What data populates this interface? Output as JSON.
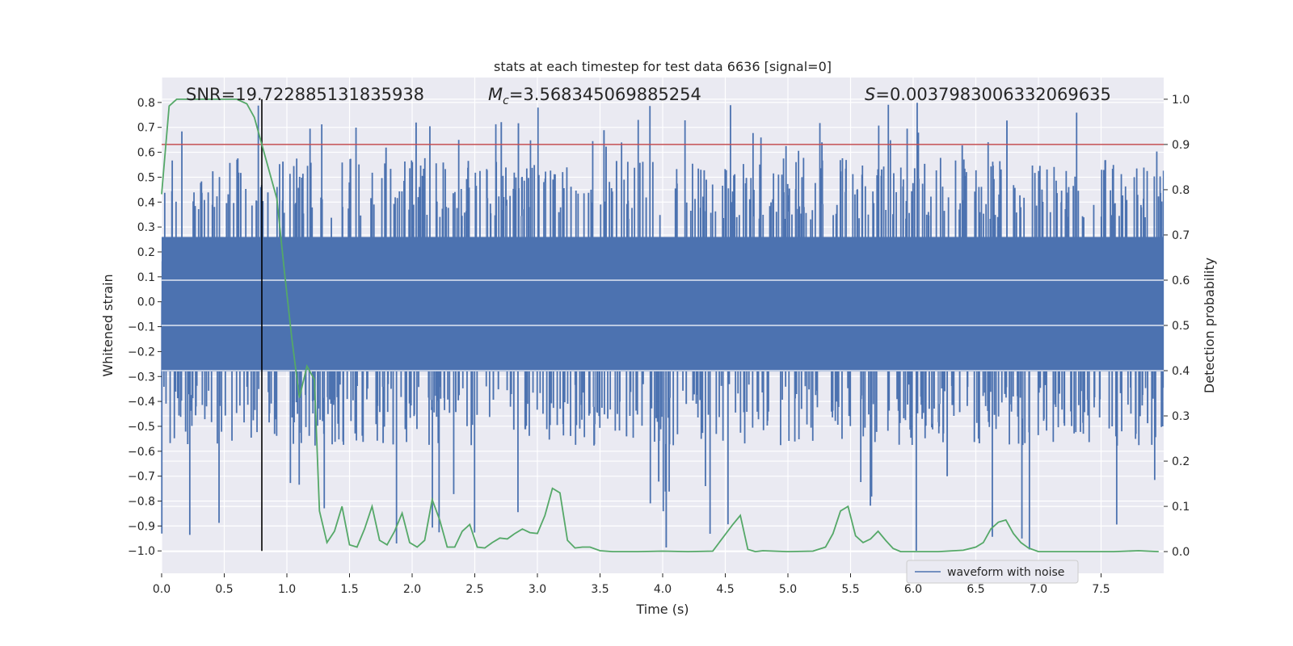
{
  "chart_data": {
    "type": "line",
    "title": "stats at each timestep for test data 6636 [signal=0]",
    "xlabel": "Time (s)",
    "ylabel": "Whitened strain",
    "ylabel_right": "Detection probability",
    "xlim": [
      0.0,
      8.0
    ],
    "ylim": [
      -1.09,
      0.9
    ],
    "ylim_right": [
      -0.048,
      1.048
    ],
    "xticks": [
      0.0,
      0.5,
      1.0,
      1.5,
      2.0,
      2.5,
      3.0,
      3.5,
      4.0,
      4.5,
      5.0,
      5.5,
      6.0,
      6.5,
      7.0,
      7.5
    ],
    "xtick_labels": [
      "0.0",
      "0.5",
      "1.0",
      "1.5",
      "2.0",
      "2.5",
      "3.0",
      "3.5",
      "4.0",
      "4.5",
      "5.0",
      "5.5",
      "6.0",
      "6.5",
      "7.0",
      "7.5"
    ],
    "yticks": [
      0.8,
      0.7,
      0.6,
      0.5,
      0.4,
      0.3,
      0.2,
      0.1,
      0.0,
      -0.1,
      -0.2,
      -0.3,
      -0.4,
      -0.5,
      -0.6,
      -0.7,
      -0.8,
      -0.9,
      -1.0
    ],
    "ytick_labels": [
      "0.8",
      "0.7",
      "0.6",
      "0.5",
      "0.4",
      "0.3",
      "0.2",
      "0.1",
      "0.0",
      "−0.1",
      "−0.2",
      "−0.3",
      "−0.4",
      "−0.5",
      "−0.6",
      "−0.7",
      "−0.8",
      "−0.9",
      "−1.0"
    ],
    "yticks_right": [
      1.0,
      0.9,
      0.8,
      0.7,
      0.6,
      0.5,
      0.4,
      0.3,
      0.2,
      0.1,
      0.0
    ],
    "ytick_labels_right": [
      "1.0",
      "0.9",
      "0.8",
      "0.7",
      "0.6",
      "0.5",
      "0.4",
      "0.3",
      "0.2",
      "0.1",
      "0.0"
    ],
    "annotations": {
      "snr": "SNR=19.722885131835938",
      "mc_symbol": "M",
      "mc_sub": "c",
      "mc_value": "=3.568345069885254",
      "s_symbol": "S",
      "s_value": "=0.0037983006332069635"
    },
    "threshold_right": 0.9,
    "detection_time": 0.8,
    "legend": [
      {
        "label": "waveform with noise",
        "color": "#4c72b0"
      }
    ],
    "series": [
      {
        "name": "waveform with noise",
        "color": "#4c72b0",
        "kind": "noise",
        "core_range": [
          -0.28,
          0.26
        ],
        "typical_extremes": [
          -0.55,
          0.55
        ],
        "peak_range": [
          -1.0,
          0.8
        ]
      },
      {
        "name": "detection probability",
        "color": "#55a868",
        "axis": "right",
        "x": [
          0.0,
          0.06,
          0.12,
          0.2,
          0.3,
          0.4,
          0.5,
          0.6,
          0.68,
          0.74,
          0.8,
          0.86,
          0.92,
          0.98,
          1.04,
          1.1,
          1.16,
          1.22,
          1.26,
          1.32,
          1.38,
          1.44,
          1.5,
          1.56,
          1.62,
          1.68,
          1.74,
          1.8,
          1.86,
          1.92,
          1.98,
          2.04,
          2.1,
          2.16,
          2.22,
          2.28,
          2.34,
          2.4,
          2.46,
          2.52,
          2.58,
          2.64,
          2.7,
          2.76,
          2.82,
          2.88,
          2.94,
          3.0,
          3.06,
          3.12,
          3.18,
          3.24,
          3.3,
          3.36,
          3.42,
          3.5,
          3.6,
          3.8,
          4.0,
          4.2,
          4.4,
          4.56,
          4.62,
          4.68,
          4.74,
          4.8,
          5.0,
          5.2,
          5.3,
          5.36,
          5.42,
          5.48,
          5.54,
          5.6,
          5.66,
          5.72,
          5.78,
          5.84,
          5.9,
          6.0,
          6.2,
          6.4,
          6.5,
          6.56,
          6.62,
          6.68,
          6.74,
          6.8,
          6.86,
          6.92,
          7.0,
          7.2,
          7.5,
          7.6,
          7.8,
          7.96
        ],
        "y": [
          0.79,
          0.985,
          1.0,
          1.0,
          1.0,
          1.0,
          1.0,
          1.0,
          0.99,
          0.96,
          0.9,
          0.84,
          0.78,
          0.62,
          0.47,
          0.34,
          0.41,
          0.38,
          0.09,
          0.02,
          0.045,
          0.1,
          0.015,
          0.01,
          0.05,
          0.1,
          0.025,
          0.015,
          0.045,
          0.085,
          0.02,
          0.01,
          0.025,
          0.115,
          0.07,
          0.01,
          0.01,
          0.045,
          0.06,
          0.01,
          0.008,
          0.02,
          0.03,
          0.028,
          0.04,
          0.05,
          0.042,
          0.04,
          0.08,
          0.14,
          0.13,
          0.025,
          0.008,
          0.01,
          0.01,
          0.002,
          0.0,
          0.0,
          0.001,
          0.0,
          0.001,
          0.06,
          0.08,
          0.005,
          0.0,
          0.002,
          0.0,
          0.001,
          0.01,
          0.04,
          0.09,
          0.1,
          0.035,
          0.02,
          0.028,
          0.045,
          0.025,
          0.007,
          0.0,
          0.0,
          0.0,
          0.003,
          0.01,
          0.02,
          0.05,
          0.065,
          0.07,
          0.04,
          0.02,
          0.008,
          0.0,
          0.0,
          0.0,
          0.0,
          0.002,
          0.0
        ]
      }
    ]
  }
}
